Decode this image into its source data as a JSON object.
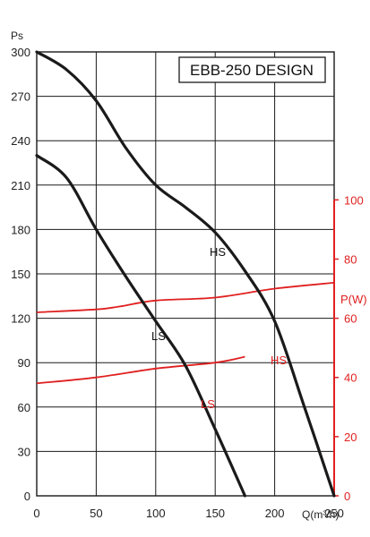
{
  "chart_data": {
    "type": "line",
    "title": "EBB-250 DESIGN",
    "xlabel": "Q(m³/h)",
    "ylabel": "Ps",
    "y2label": "P(W)",
    "xlim": [
      0,
      250
    ],
    "ylim": [
      0,
      300
    ],
    "y2lim": [
      0,
      100
    ],
    "x_ticks": [
      0,
      50,
      100,
      150,
      200,
      250
    ],
    "y_ticks": [
      0,
      30,
      60,
      90,
      120,
      150,
      180,
      210,
      240,
      270,
      300
    ],
    "y2_ticks": [
      0,
      20,
      40,
      60,
      80,
      100
    ],
    "grid": true,
    "colors": {
      "pressure": "#1a1a1a",
      "power": "#e02020",
      "grid": "#1a1a1a"
    },
    "pressure_series": [
      {
        "name": "HS",
        "x": [
          0,
          25,
          50,
          75,
          100,
          125,
          150,
          175,
          200,
          225,
          250
        ],
        "y": [
          300,
          288,
          267,
          235,
          210,
          195,
          178,
          152,
          118,
          60,
          0
        ]
      },
      {
        "name": "LS",
        "x": [
          0,
          25,
          50,
          75,
          100,
          125,
          150,
          175
        ],
        "y": [
          230,
          215,
          180,
          148,
          118,
          88,
          45,
          0
        ]
      }
    ],
    "power_series": [
      {
        "name": "HS",
        "x": [
          0,
          50,
          70,
          100,
          150,
          200,
          250
        ],
        "y": [
          62,
          63,
          64,
          66,
          67,
          70,
          72
        ]
      },
      {
        "name": "LS",
        "x": [
          0,
          50,
          100,
          150,
          175
        ],
        "y": [
          38,
          40,
          43,
          45,
          47
        ]
      }
    ]
  }
}
